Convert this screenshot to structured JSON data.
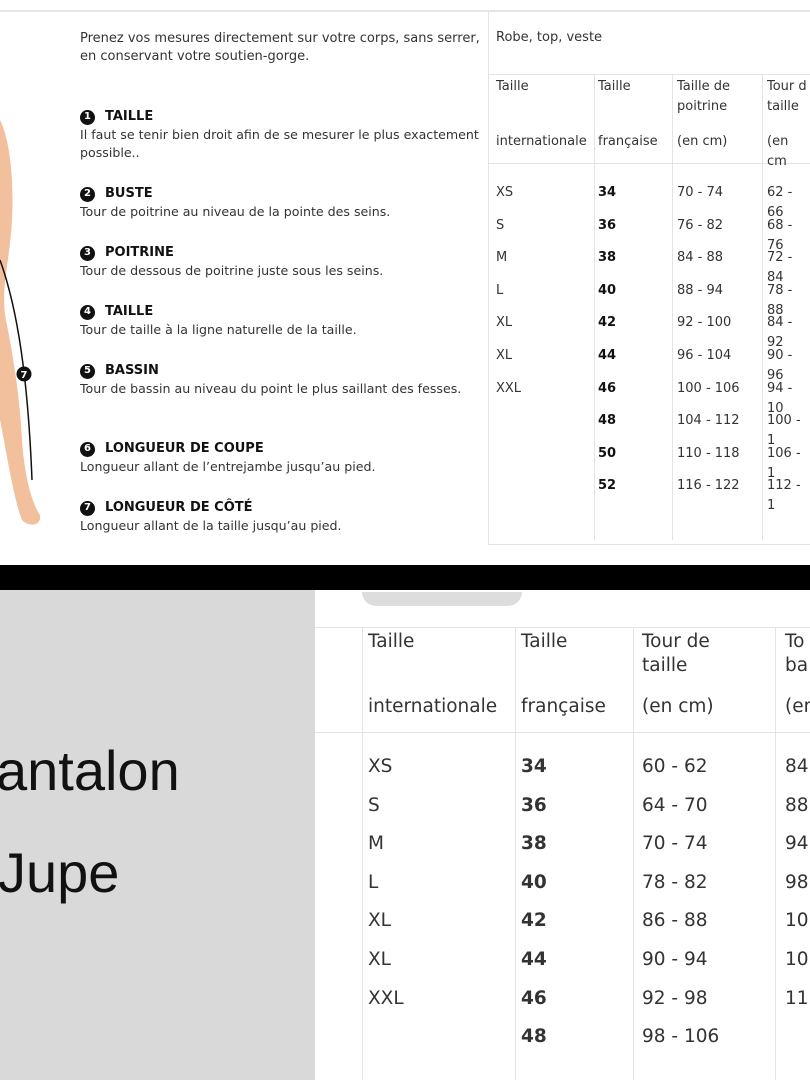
{
  "guide": {
    "intro": "Prenez vos mesures directement sur votre corps, sans serrer, en conservant votre soutien-gorge.",
    "measures": [
      {
        "num": "1",
        "title": "TAILLE",
        "desc": "Il faut se tenir bien droit afin de se mesurer le plus exactement possible.."
      },
      {
        "num": "2",
        "title": "BUSTE",
        "desc": "Tour de poitrine au niveau de la pointe des seins."
      },
      {
        "num": "3",
        "title": "POITRINE",
        "desc": "Tour de dessous de poitrine juste sous les seins."
      },
      {
        "num": "4",
        "title": "TAILLE",
        "desc": "Tour de taille à la ligne naturelle de la taille."
      },
      {
        "num": "5",
        "title": "BASSIN",
        "desc": "Tour de bassin au niveau du point le plus saillant des fesses."
      },
      {
        "num": "6",
        "title": "LONGUEUR DE COUPE",
        "desc": "Longueur allant de l’entrejambe jusqu’au pied."
      },
      {
        "num": "7",
        "title": "LONGUEUR DE CÔTÉ",
        "desc": "Longueur allant de la taille jusqu’au pied."
      }
    ],
    "figure_marker": "7"
  },
  "table_top": {
    "caption": "Robe, top, veste",
    "headers": [
      {
        "l1": "Taille",
        "l2": "",
        "l3": "internationale"
      },
      {
        "l1": "Taille",
        "l2": "",
        "l3": "française"
      },
      {
        "l1": "Taille de",
        "l2": "poitrine",
        "l3": "(en cm)"
      },
      {
        "l1": "Tour d",
        "l2": "taille",
        "l3": "(en cm"
      }
    ],
    "rows": [
      [
        "XS",
        "34",
        "70 - 74",
        "62 - 66"
      ],
      [
        "S",
        "36",
        "76 - 82",
        "68 - 76"
      ],
      [
        "M",
        "38",
        "84 - 88",
        "72 - 84"
      ],
      [
        "L",
        "40",
        "88 - 94",
        "78 - 88"
      ],
      [
        "XL",
        "42",
        "92 - 100",
        "84 - 92"
      ],
      [
        "XL",
        "44",
        "96 - 104",
        "90 - 96"
      ],
      [
        "XXL",
        "46",
        "100 - 106",
        "94 - 10"
      ],
      [
        "",
        "48",
        "104 - 112",
        "100 - 1"
      ],
      [
        "",
        "50",
        "110 - 118",
        "106 - 1"
      ],
      [
        "",
        "52",
        "116 - 122",
        "112 - 1"
      ]
    ]
  },
  "side_labels": [
    "antalon",
    "Jupe"
  ],
  "table_bottom": {
    "headers": [
      {
        "l1": "Taille",
        "l2": "",
        "l3": "internationale"
      },
      {
        "l1": "Taille",
        "l2": "",
        "l3": "française"
      },
      {
        "l1": "Tour de",
        "l2": "taille",
        "l3": "(en cm)"
      },
      {
        "l1": "To",
        "l2": "ba",
        "l3": "(er"
      }
    ],
    "rows": [
      [
        "XS",
        "34",
        "60 - 62",
        "84"
      ],
      [
        "S",
        "36",
        "64 - 70",
        "88"
      ],
      [
        "M",
        "38",
        "70 - 74",
        "94"
      ],
      [
        "L",
        "40",
        "78 - 82",
        "98"
      ],
      [
        "XL",
        "42",
        "86 - 88",
        "10"
      ],
      [
        "XL",
        "44",
        "90 - 94",
        "10"
      ],
      [
        "XXL",
        "46",
        "92 - 98",
        "11"
      ],
      [
        "",
        "48",
        "98 - 106",
        ""
      ]
    ]
  },
  "colors": {
    "skin": "#f2c09c",
    "panel_gray": "#d9d9d9",
    "divider": "#000000"
  }
}
